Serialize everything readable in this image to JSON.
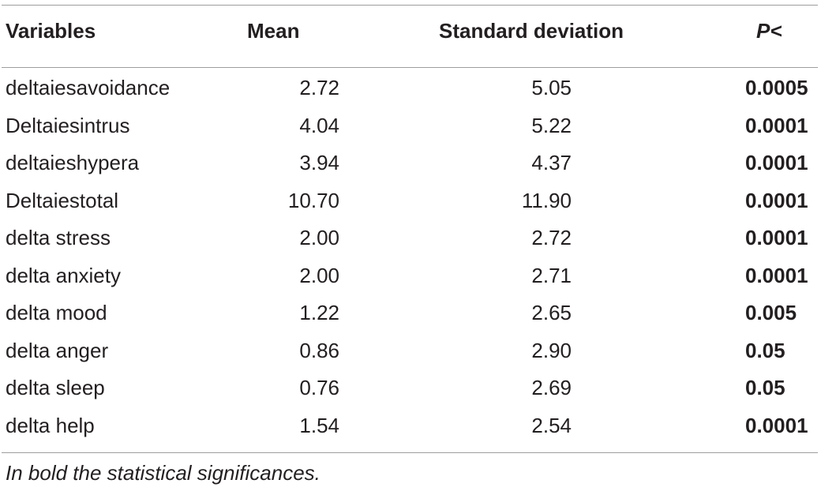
{
  "table": {
    "headers": {
      "variables": "Variables",
      "mean": "Mean",
      "sd": "Standard deviation",
      "p": "P<"
    },
    "rows": [
      {
        "variable": "deltaiesavoidance",
        "mean": "2.72",
        "sd": "5.05",
        "p": "0.0005"
      },
      {
        "variable": "Deltaiesintrus",
        "mean": "4.04",
        "sd": "5.22",
        "p": "0.0001"
      },
      {
        "variable": "deltaieshypera",
        "mean": "3.94",
        "sd": "4.37",
        "p": "0.0001"
      },
      {
        "variable": "Deltaiestotal",
        "mean": "10.70",
        "sd": "11.90",
        "p": "0.0001"
      },
      {
        "variable": "delta stress",
        "mean": "2.00",
        "sd": "2.72",
        "p": "0.0001"
      },
      {
        "variable": "delta anxiety",
        "mean": "2.00",
        "sd": "2.71",
        "p": "0.0001"
      },
      {
        "variable": "delta mood",
        "mean": "1.22",
        "sd": "2.65",
        "p": "0.005"
      },
      {
        "variable": "delta anger",
        "mean": "0.86",
        "sd": "2.90",
        "p": "0.05"
      },
      {
        "variable": "delta sleep",
        "mean": "0.76",
        "sd": "2.69",
        "p": "0.05"
      },
      {
        "variable": "delta help",
        "mean": "1.54",
        "sd": "2.54",
        "p": "0.0001"
      }
    ]
  },
  "footnote": "In bold the statistical significances."
}
